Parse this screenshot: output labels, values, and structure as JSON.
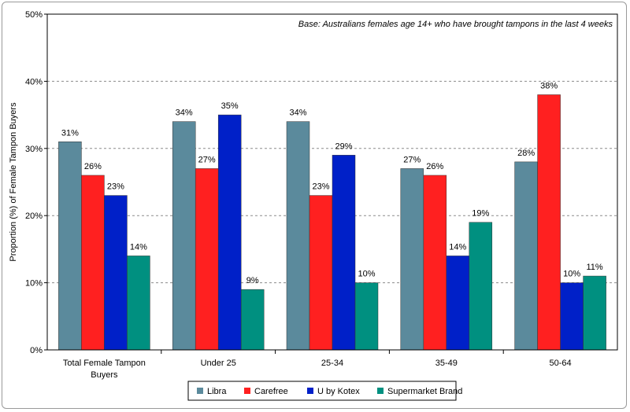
{
  "chart_data": {
    "type": "bar",
    "title": "",
    "annotation": "Base: Australians females age 14+ who have brought tampons in the last 4 weeks",
    "xlabel": "",
    "ylabel": "Proportion (%) of Female Tampon Buyers",
    "ylim": [
      0,
      50
    ],
    "yticks": [
      "0%",
      "10%",
      "20%",
      "30%",
      "40%",
      "50%"
    ],
    "grid": true,
    "legend_position": "bottom",
    "categories": [
      [
        "Total Female Tampon",
        "Buyers"
      ],
      [
        "Under 25"
      ],
      [
        "25-34"
      ],
      [
        "35-49"
      ],
      [
        "50-64"
      ]
    ],
    "series": [
      {
        "name": "Libra",
        "color": "#5b8a9c",
        "values": [
          31,
          34,
          34,
          27,
          28
        ]
      },
      {
        "name": "Carefree",
        "color": "#ff2020",
        "values": [
          26,
          27,
          23,
          26,
          38
        ]
      },
      {
        "name": "U by Kotex",
        "color": "#0020c8",
        "values": [
          23,
          35,
          29,
          14,
          10
        ]
      },
      {
        "name": "Supermarket Brand",
        "color": "#009080",
        "values": [
          14,
          9,
          10,
          19,
          11
        ]
      }
    ]
  }
}
